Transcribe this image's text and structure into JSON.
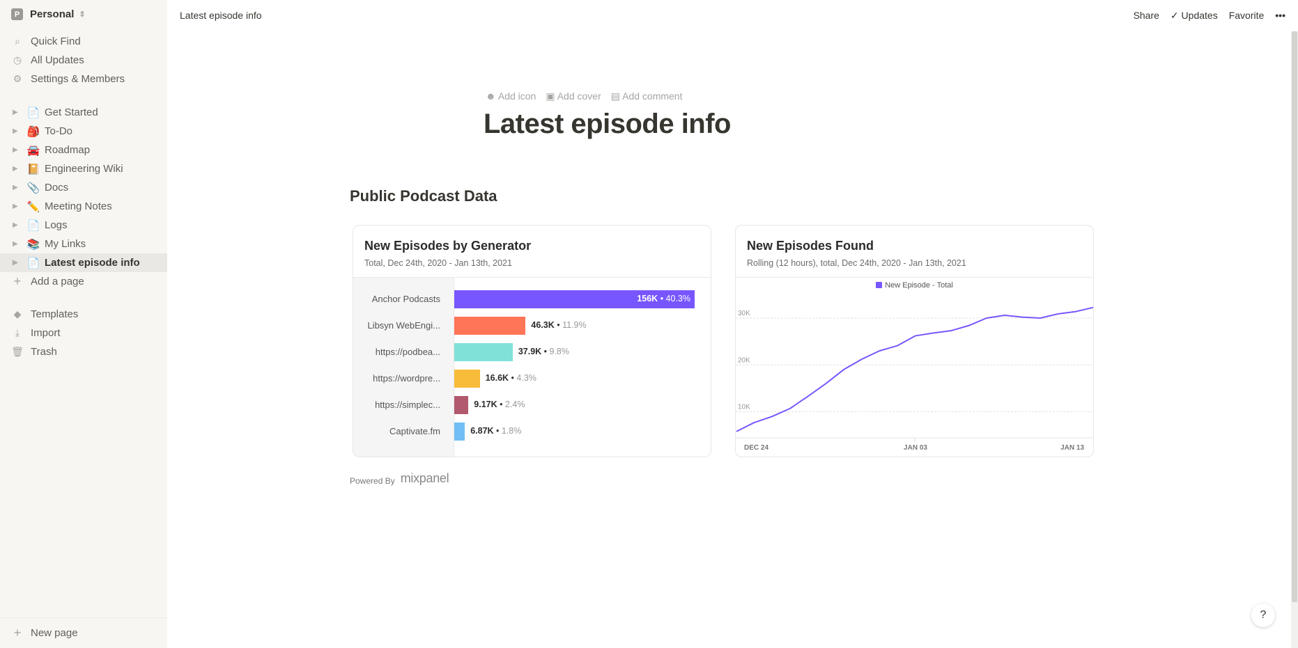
{
  "sidebar": {
    "workspace": {
      "initial": "P",
      "name": "Personal"
    },
    "nav": [
      {
        "icon": "search-icon",
        "label": "Quick Find"
      },
      {
        "icon": "clock-icon",
        "label": "All Updates"
      },
      {
        "icon": "gear-icon",
        "label": "Settings & Members"
      }
    ],
    "pages": [
      {
        "emoji": "📄",
        "label": "Get Started"
      },
      {
        "emoji": "🎒",
        "label": "To-Do"
      },
      {
        "emoji": "🚘",
        "label": "Roadmap"
      },
      {
        "emoji": "📔",
        "label": "Engineering Wiki"
      },
      {
        "emoji": "📎",
        "label": "Docs"
      },
      {
        "emoji": "✏️",
        "label": "Meeting Notes"
      },
      {
        "emoji": "📄",
        "label": "Logs"
      },
      {
        "emoji": "📚",
        "label": "My Links"
      },
      {
        "emoji": "📄",
        "label": "Latest episode info",
        "active": true
      }
    ],
    "add_page": "Add a page",
    "tools": [
      {
        "icon": "templates-icon",
        "label": "Templates"
      },
      {
        "icon": "import-icon",
        "label": "Import"
      },
      {
        "icon": "trash-icon",
        "label": "Trash"
      }
    ],
    "new_page": "New page"
  },
  "topbar": {
    "breadcrumb": "Latest episode info",
    "share": "Share",
    "updates": "Updates",
    "favorite": "Favorite",
    "more": "•••"
  },
  "page": {
    "add_icon": "Add icon",
    "add_cover": "Add cover",
    "add_comment": "Add comment",
    "title": "Latest episode info",
    "section": "Public Podcast Data",
    "powered_by": "Powered By",
    "brand": "mixpanel",
    "help": "?"
  },
  "chart_data": [
    {
      "type": "bar",
      "orientation": "horizontal",
      "title": "New Episodes by Generator",
      "subtitle": "Total, Dec 24th, 2020 - Jan 13th, 2021",
      "categories": [
        "Anchor Podcasts",
        "Libsyn WebEngi...",
        "https://podbea...",
        "https://wordpre...",
        "https://simplec...",
        "Captivate.fm"
      ],
      "values": [
        156000,
        46300,
        37900,
        16600,
        9170,
        6870
      ],
      "value_labels": [
        "156K",
        "46.3K",
        "37.9K",
        "16.6K",
        "9.17K",
        "6.87K"
      ],
      "percent_labels": [
        "40.3%",
        "11.9%",
        "9.8%",
        "4.3%",
        "2.4%",
        "1.8%"
      ],
      "colors": [
        "#7856ff",
        "#ff7557",
        "#80e1d9",
        "#f8bc3b",
        "#b2596e",
        "#72bef4"
      ]
    },
    {
      "type": "line",
      "title": "New Episodes Found",
      "subtitle": "Rolling (12 hours), total, Dec 24th, 2020 - Jan 13th, 2021",
      "legend": "New Episode - Total",
      "legend_position": "top",
      "color": "#7856ff",
      "x": [
        "2020-12-24",
        "2020-12-25",
        "2020-12-26",
        "2020-12-27",
        "2020-12-28",
        "2020-12-29",
        "2020-12-30",
        "2020-12-31",
        "2021-01-01",
        "2021-01-02",
        "2021-01-03",
        "2021-01-04",
        "2021-01-05",
        "2021-01-06",
        "2021-01-07",
        "2021-01-08",
        "2021-01-09",
        "2021-01-10",
        "2021-01-11",
        "2021-01-12",
        "2021-01-13"
      ],
      "y": [
        5800,
        7700,
        9000,
        10700,
        13300,
        16000,
        19000,
        21200,
        23000,
        24100,
        26200,
        26800,
        27300,
        28400,
        30000,
        30600,
        30200,
        30000,
        30900,
        31400,
        32300
      ],
      "yticks": [
        "10K",
        "20K",
        "30K"
      ],
      "ytick_values": [
        10000,
        20000,
        30000
      ],
      "xticks": [
        "DEC 24",
        "JAN 03",
        "JAN 13"
      ],
      "grid": true
    }
  ]
}
